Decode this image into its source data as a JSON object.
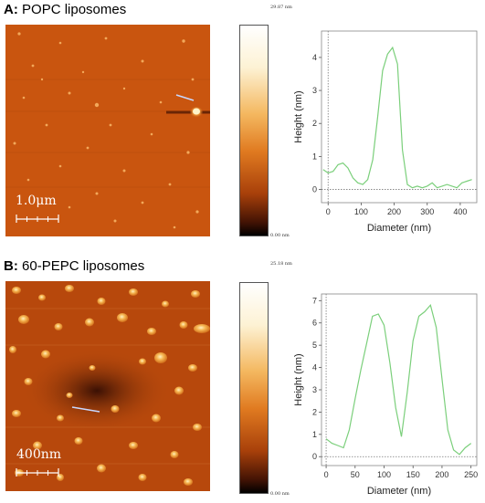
{
  "panels": [
    {
      "letter": "A",
      "title": "POPC liposomes",
      "scale_bar": "1.0μm",
      "colorbar": {
        "max": "29.87 nm",
        "min": "0.00 nm"
      }
    },
    {
      "letter": "B",
      "title": "60-PEPC liposomes",
      "scale_bar": "400nm",
      "colorbar": {
        "max": "25.18 nm",
        "min": "0.00 nm"
      }
    }
  ],
  "chart_data": [
    {
      "type": "line",
      "xlabel": "Diameter (nm)",
      "ylabel": "Height (nm)",
      "xlim": [
        -20,
        450
      ],
      "ylim": [
        -0.4,
        4.8
      ],
      "xticks": [
        0,
        100,
        200,
        300,
        400
      ],
      "yticks": [
        0,
        1,
        2,
        3,
        4
      ],
      "color": "#7bcf7b",
      "x": [
        -15,
        0,
        15,
        30,
        45,
        60,
        75,
        90,
        105,
        120,
        135,
        150,
        165,
        180,
        195,
        210,
        225,
        240,
        255,
        270,
        285,
        300,
        315,
        330,
        345,
        360,
        375,
        390,
        405,
        420,
        435
      ],
      "y": [
        0.6,
        0.5,
        0.55,
        0.75,
        0.8,
        0.65,
        0.35,
        0.2,
        0.15,
        0.3,
        0.9,
        2.2,
        3.6,
        4.1,
        4.3,
        3.8,
        1.2,
        0.15,
        0.05,
        0.1,
        0.05,
        0.1,
        0.2,
        0.05,
        0.1,
        0.15,
        0.1,
        0.05,
        0.2,
        0.25,
        0.3
      ]
    },
    {
      "type": "line",
      "xlabel": "Diameter (nm)",
      "ylabel": "Height (nm)",
      "xlim": [
        -8,
        260
      ],
      "ylim": [
        -0.4,
        7.3
      ],
      "xticks": [
        0,
        50,
        100,
        150,
        200,
        250
      ],
      "yticks": [
        0,
        1,
        2,
        3,
        4,
        5,
        6,
        7
      ],
      "color": "#7bcf7b",
      "x": [
        0,
        10,
        20,
        30,
        40,
        50,
        60,
        70,
        80,
        90,
        100,
        110,
        120,
        130,
        140,
        150,
        160,
        170,
        180,
        190,
        200,
        210,
        220,
        230,
        240,
        250
      ],
      "y": [
        0.8,
        0.6,
        0.5,
        0.4,
        1.2,
        2.6,
        3.9,
        5.1,
        6.3,
        6.4,
        5.9,
        4.2,
        2.2,
        0.9,
        2.9,
        5.2,
        6.3,
        6.5,
        6.8,
        5.8,
        3.5,
        1.2,
        0.3,
        0.1,
        0.4,
        0.6
      ]
    }
  ]
}
